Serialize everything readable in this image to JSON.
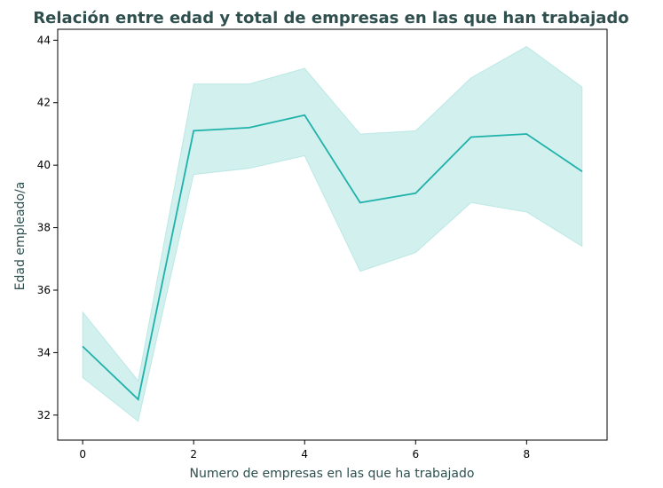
{
  "chart_data": {
    "type": "line",
    "title": "Relación entre edad y total de empresas en las que han trabajado",
    "xlabel": "Numero de empresas en las que ha trabajado",
    "ylabel": "Edad empleado/a",
    "xlim": [
      -0.45,
      9.45
    ],
    "ylim": [
      31.2,
      44.35
    ],
    "x_ticks": [
      0,
      2,
      4,
      6,
      8
    ],
    "y_ticks": [
      32,
      34,
      36,
      38,
      40,
      42,
      44
    ],
    "grid": false,
    "legend": "none",
    "series": [
      {
        "x": [
          0,
          1,
          2,
          3,
          4,
          5,
          6,
          7,
          8,
          9
        ],
        "values": [
          34.2,
          32.5,
          41.1,
          41.2,
          41.6,
          38.8,
          39.1,
          40.9,
          41.0,
          39.8
        ],
        "ci_lower": [
          33.2,
          31.8,
          39.7,
          39.9,
          40.3,
          36.6,
          37.2,
          38.8,
          38.5,
          37.4
        ],
        "ci_upper": [
          35.3,
          33.1,
          42.6,
          42.6,
          43.1,
          41.0,
          41.1,
          42.8,
          43.8,
          42.5
        ],
        "color": "#20b2aa",
        "band_color": "#20b2aa"
      }
    ],
    "text_color": "#2f4f4f"
  }
}
